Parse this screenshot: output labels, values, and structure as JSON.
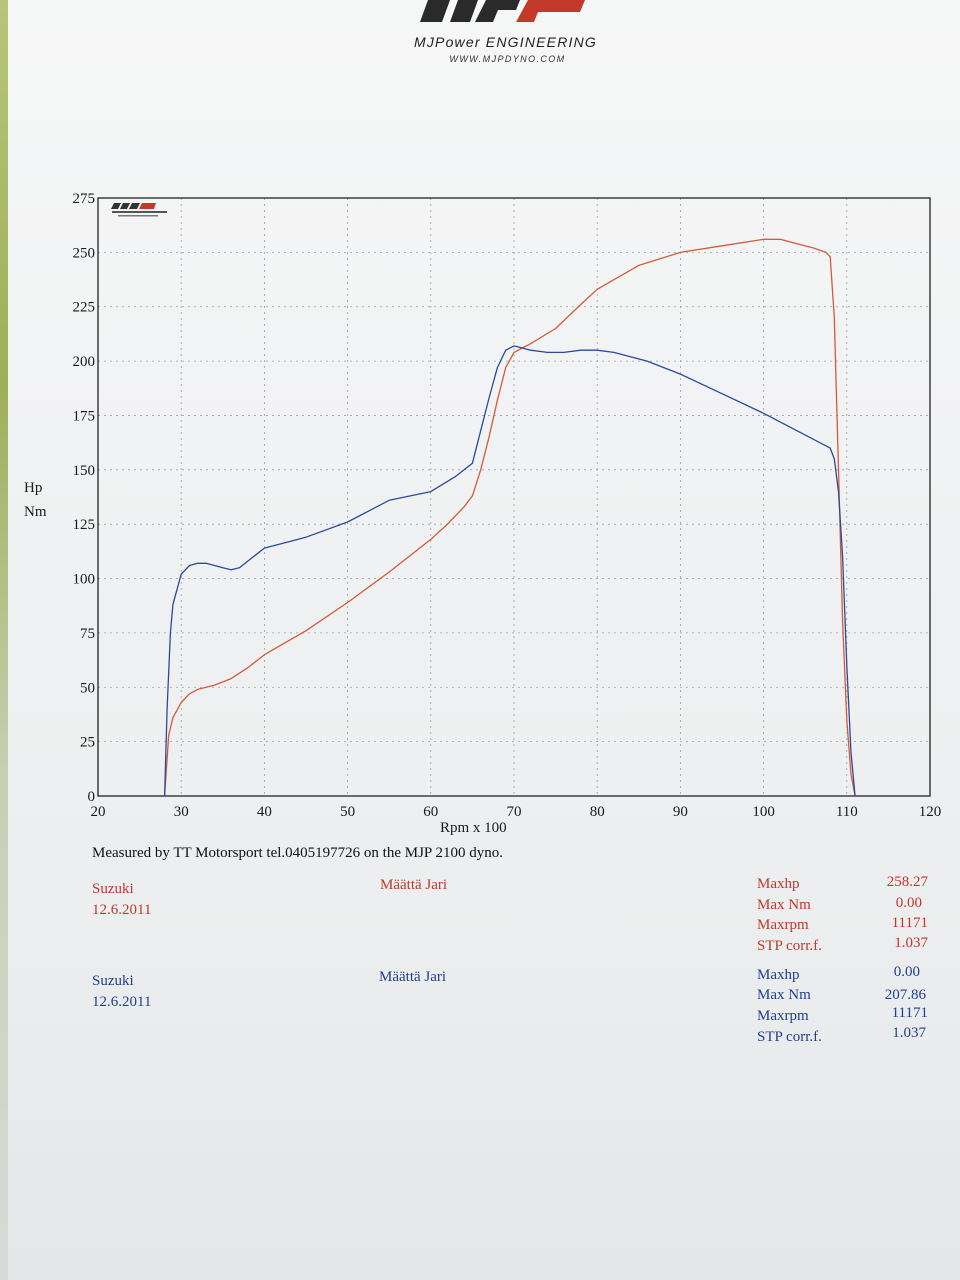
{
  "header": {
    "company": "MJPower ENGINEERING",
    "url": "WWW.MJPDYNO.COM"
  },
  "chart_data": {
    "type": "line",
    "xlabel": "Rpm x 100",
    "ylabel": "Hp\nNm",
    "xlim": [
      20,
      120
    ],
    "ylim": [
      0,
      275
    ],
    "x_ticks": [
      20,
      30,
      40,
      50,
      60,
      70,
      80,
      90,
      100,
      110,
      120
    ],
    "y_ticks": [
      0,
      25,
      50,
      75,
      100,
      125,
      150,
      175,
      200,
      225,
      250,
      275
    ],
    "grid": true,
    "series": [
      {
        "color": "#d35b3a",
        "x": [
          28,
          28.5,
          29,
          30,
          31,
          32,
          34,
          36,
          38,
          40,
          45,
          50,
          55,
          60,
          62,
          64,
          65,
          66,
          67,
          68,
          69,
          70,
          71,
          72,
          75,
          78,
          80,
          85,
          90,
          95,
          100,
          102,
          104,
          106,
          107.5,
          108,
          108.5,
          109,
          109.5,
          110,
          110.5,
          111
        ],
        "y": [
          0,
          28,
          36,
          43,
          47,
          49,
          51,
          54,
          59,
          65,
          76,
          89,
          103,
          118,
          125,
          133,
          138,
          150,
          165,
          182,
          197,
          204,
          206,
          208,
          215,
          226,
          233,
          244,
          250,
          253,
          256,
          256,
          254,
          252,
          250,
          248,
          220,
          150,
          80,
          35,
          10,
          0
        ]
      },
      {
        "color": "#2c4a9a",
        "x": [
          28,
          28.3,
          28.7,
          29,
          30,
          31,
          32,
          33,
          34,
          35,
          36,
          37,
          38,
          40,
          45,
          50,
          55,
          60,
          63,
          64,
          65,
          66,
          67,
          68,
          69,
          70,
          71,
          72,
          74,
          76,
          78,
          80,
          82,
          84,
          86,
          88,
          90,
          95,
          100,
          104,
          107,
          108,
          108.5,
          109,
          109.5,
          110,
          110.5,
          111
        ],
        "y": [
          0,
          40,
          75,
          88,
          102,
          106,
          107,
          107,
          106,
          105,
          104,
          105,
          108,
          114,
          119,
          126,
          136,
          140,
          147,
          150,
          153,
          168,
          183,
          197,
          205,
          207,
          206,
          205,
          204,
          204,
          205,
          205,
          204,
          202,
          200,
          197,
          194,
          185,
          176,
          168,
          162,
          160,
          155,
          140,
          110,
          60,
          20,
          0
        ]
      }
    ]
  },
  "measured_line": "Measured by TT Motorsport tel.0405197726 on the MJP 2100 dyno.",
  "runs": [
    {
      "color": "#c0392b",
      "vehicle": "Suzuki",
      "date": "12.6.2011",
      "driver": "Määttä Jari",
      "labels": [
        "Maxhp",
        "Max Nm",
        "Maxrpm",
        "STP corr.f."
      ],
      "values": [
        "258.27",
        "0.00",
        "11171",
        "1.037"
      ]
    },
    {
      "color": "#1f3f8f",
      "vehicle": "Suzuki",
      "date": "12.6.2011",
      "driver": "Määttä Jari",
      "labels": [
        "Maxhp",
        "Max Nm",
        "Maxrpm",
        "STP corr.f."
      ],
      "values": [
        "0.00",
        "207.86",
        "11171",
        "1.037"
      ]
    }
  ]
}
